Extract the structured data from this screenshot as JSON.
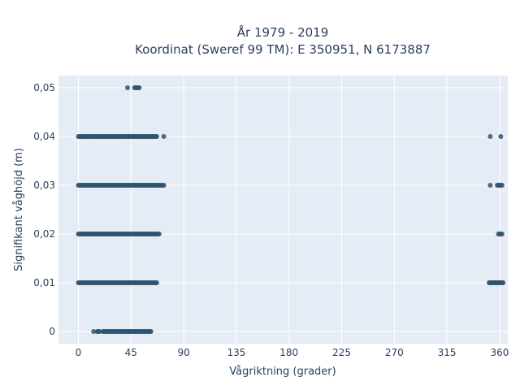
{
  "chart_data": {
    "type": "scatter",
    "title": "År 1979 - 2019",
    "subtitle": "Koordinat (Sweref 99 TM): E 350951, N 6173887",
    "xlabel": "Vågriktning (grader)",
    "ylabel": "Signifikant våghöjd (m)",
    "xlim": [
      -17,
      367
    ],
    "ylim": [
      -0.0025,
      0.0525
    ],
    "x_ticks": [
      0,
      45,
      90,
      135,
      180,
      225,
      270,
      315,
      360
    ],
    "x_tick_labels": [
      "0",
      "45",
      "90",
      "135",
      "180",
      "225",
      "270",
      "315",
      "360"
    ],
    "y_ticks": [
      0,
      0.01,
      0.02,
      0.03,
      0.04,
      0.05
    ],
    "y_tick_labels": [
      "0",
      "0,01",
      "0,02",
      "0,03",
      "0,04",
      "0,05"
    ],
    "grid": true,
    "series": [
      {
        "values_description_ranges": [
          {
            "y": 0.0,
            "x_ranges": [
              [
                13,
                13
              ],
              [
                16,
                18
              ],
              [
                21,
                62
              ]
            ]
          },
          {
            "y": 0.01,
            "x_ranges": [
              [
                0,
                67
              ],
              [
                351,
                363
              ]
            ]
          },
          {
            "y": 0.02,
            "x_ranges": [
              [
                0,
                69
              ],
              [
                359,
                362
              ]
            ]
          },
          {
            "y": 0.03,
            "x_ranges": [
              [
                0,
                73
              ],
              [
                352,
                352
              ],
              [
                358,
                362
              ]
            ]
          },
          {
            "y": 0.04,
            "x_ranges": [
              [
                0,
                67
              ],
              [
                73,
                73
              ],
              [
                352,
                352
              ],
              [
                361,
                361
              ]
            ]
          },
          {
            "y": 0.05,
            "x_ranges": [
              [
                42,
                42
              ],
              [
                48,
                52
              ]
            ]
          }
        ]
      }
    ],
    "point_color": "#2f5470"
  }
}
